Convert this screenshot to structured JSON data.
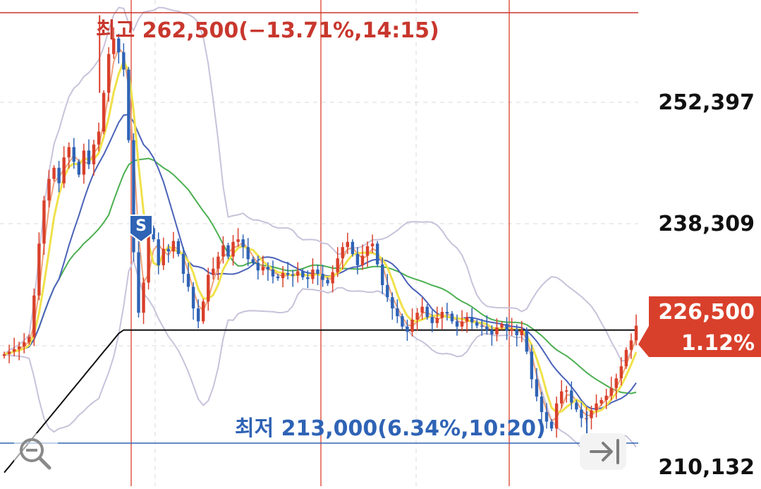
{
  "chart_data": {
    "type": "candlestick",
    "price_axis": {
      "ticks": [
        "252,397",
        "238,309",
        "210,132"
      ],
      "ylim": [
        208000,
        266000
      ]
    },
    "high_marker": {
      "text": "최고 262,500(−13.71%,14:15)",
      "price": 262500,
      "color": "#c8372d"
    },
    "low_marker": {
      "text": "최저 213,000(6.34%,10:20)",
      "price": 213000,
      "color": "#2f63b5"
    },
    "current_price": {
      "price_text": "226,500",
      "change_text": "1.12%",
      "price": 226500,
      "color": "#d9402b"
    },
    "trade_signal": {
      "label": "S",
      "color": "#2f63b5"
    },
    "candles_close": [
      223200,
      223500,
      223800,
      224100,
      224600,
      225200,
      230000,
      236000,
      241000,
      243500,
      244800,
      243000,
      246000,
      247200,
      245500,
      244000,
      246800,
      245200,
      247500,
      249000,
      253500,
      258000,
      259800,
      258200,
      256200,
      248000,
      235000,
      228000,
      231500,
      237800,
      236500,
      233500,
      235400,
      235100,
      236300,
      234800,
      232500,
      231000,
      228500,
      227000,
      229300,
      232400,
      233100,
      234500,
      235800,
      234500,
      236200,
      236500,
      235600,
      234200,
      233800,
      232900,
      233300,
      233000,
      232200,
      232000,
      232600,
      232400,
      232300,
      232800,
      232100,
      231900,
      233000,
      232500,
      231800,
      231400,
      232700,
      234300,
      235600,
      236200,
      234800,
      233500,
      234600,
      235700,
      236000,
      233600,
      231200,
      229800,
      228500,
      227600,
      226400,
      225800,
      227200,
      228000,
      228700,
      227500,
      226800,
      227400,
      228100,
      227900,
      227000,
      226400,
      227000,
      227500,
      226900,
      226500,
      226400,
      226000,
      225500,
      226300,
      226700,
      225900,
      226100,
      225400,
      226000,
      223500,
      220300,
      218300,
      216500,
      215400,
      214600,
      217500,
      218900,
      219000,
      217600,
      216800,
      215800,
      215800,
      216700,
      217500,
      217900,
      218400,
      219300,
      220400,
      221800,
      223700,
      224800,
      226500
    ],
    "overlays": [
      {
        "name": "",
        "role": "short moving average",
        "color": "#f0e14a",
        "width": 3
      },
      {
        "name": "",
        "role": "moving average",
        "color": "#f0a37a",
        "width": 2
      },
      {
        "name": "",
        "role": "moving average",
        "color": "#4a62b8",
        "width": 2
      },
      {
        "name": "",
        "role": "moving average",
        "color": "#4caf50",
        "width": 2
      },
      {
        "name": "",
        "role": "long moving average",
        "color": "#111111",
        "width": 2
      },
      {
        "name": "",
        "role": "bollinger band",
        "color": "#c9c2da",
        "width": 2
      }
    ],
    "colors": {
      "up_candle": "#d9402b",
      "down_candle": "#2f63b5",
      "session_divider": "#e05a4a",
      "grid": "#d8d8d8",
      "high_line": "#c8372d",
      "low_line": "#2f63b5"
    },
    "grid": true
  },
  "controls": {
    "zoom_icon": "magnifier-minus-icon",
    "scroll_latest_icon": "scroll-to-latest-icon"
  }
}
